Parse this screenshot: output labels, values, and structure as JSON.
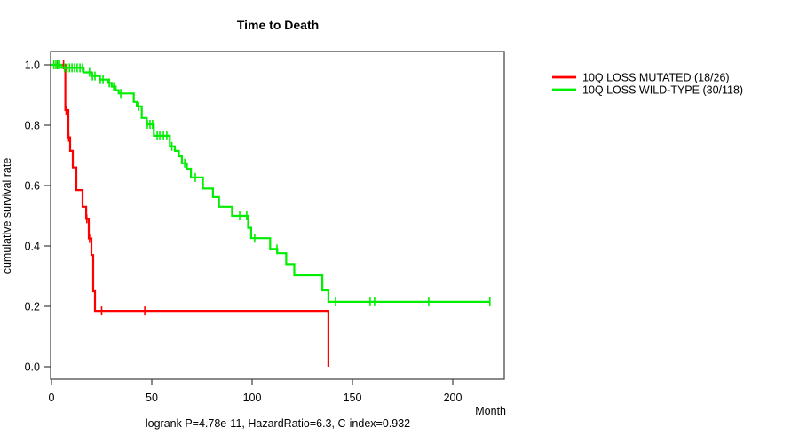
{
  "title": "Time to Death",
  "caption": "logrank P=4.78e-11, HazardRatio=6.3, C-index=0.932",
  "axes": {
    "xlabel": "Month",
    "ylabel": "cumulative survival rate",
    "x_ticks": [
      0,
      50,
      100,
      150,
      200
    ],
    "y_ticks": [
      "0.0",
      "0.2",
      "0.4",
      "0.6",
      "0.8",
      "1.0"
    ],
    "xlim": [
      0,
      220
    ],
    "ylim": [
      0.0,
      1.0
    ]
  },
  "legend": [
    {
      "label": "10Q LOSS MUTATED (18/26)",
      "color": "#ff0000"
    },
    {
      "label": "10Q LOSS WILD-TYPE (30/118)",
      "color": "#00ee00"
    }
  ],
  "chart_data": {
    "type": "line",
    "subtype": "kaplan-meier-step",
    "title": "Time to Death",
    "xlabel": "Month",
    "ylabel": "cumulative survival rate",
    "xlim": [
      0,
      220
    ],
    "ylim": [
      0.0,
      1.0
    ],
    "grid": false,
    "legend_position": "right-outside",
    "series": [
      {
        "name": "10Q LOSS MUTATED (18/26)",
        "color": "#ff0000",
        "events_over_total": "18/26",
        "steps": [
          [
            0,
            1.0
          ],
          [
            6.9,
            0.85
          ],
          [
            8.4,
            0.76
          ],
          [
            9.3,
            0.715
          ],
          [
            10.6,
            0.66
          ],
          [
            12.4,
            0.585
          ],
          [
            15.5,
            0.53
          ],
          [
            17.3,
            0.49
          ],
          [
            18.6,
            0.425
          ],
          [
            19.9,
            0.37
          ],
          [
            20.8,
            0.25
          ],
          [
            21.7,
            0.185
          ],
          [
            138,
            0.0
          ]
        ],
        "end_month": 138,
        "censor_marks": [
          [
            3,
            1.0
          ],
          [
            6,
            1.0
          ],
          [
            7.3,
            0.85
          ],
          [
            8.6,
            0.76
          ],
          [
            17.6,
            0.49
          ],
          [
            19.0,
            0.425
          ],
          [
            25,
            0.185
          ],
          [
            46.5,
            0.185
          ]
        ]
      },
      {
        "name": "10Q LOSS WILD-TYPE (30/118)",
        "color": "#00ee00",
        "events_over_total": "30/118",
        "steps": [
          [
            0,
            1.0
          ],
          [
            5,
            0.99
          ],
          [
            16,
            0.975
          ],
          [
            20,
            0.963
          ],
          [
            24,
            0.951
          ],
          [
            28,
            0.94
          ],
          [
            30,
            0.928
          ],
          [
            32,
            0.916
          ],
          [
            33.5,
            0.905
          ],
          [
            41,
            0.877
          ],
          [
            42.5,
            0.862
          ],
          [
            45,
            0.824
          ],
          [
            47.5,
            0.803
          ],
          [
            51,
            0.765
          ],
          [
            59,
            0.73
          ],
          [
            61.5,
            0.715
          ],
          [
            63.5,
            0.697
          ],
          [
            65,
            0.674
          ],
          [
            67.5,
            0.656
          ],
          [
            69.5,
            0.627
          ],
          [
            75.5,
            0.59
          ],
          [
            80.5,
            0.562
          ],
          [
            83.5,
            0.53
          ],
          [
            90,
            0.5
          ],
          [
            98,
            0.46
          ],
          [
            99.5,
            0.426
          ],
          [
            109,
            0.39
          ],
          [
            112.5,
            0.376
          ],
          [
            117,
            0.34
          ],
          [
            121,
            0.303
          ],
          [
            135,
            0.253
          ],
          [
            138,
            0.215
          ]
        ],
        "end_month": 218.5,
        "censor_marks": [
          [
            1.2,
            1.0
          ],
          [
            2.2,
            1.0
          ],
          [
            3.1,
            1.0
          ],
          [
            4.0,
            1.0
          ],
          [
            6.5,
            0.99
          ],
          [
            7.8,
            0.99
          ],
          [
            9.0,
            0.99
          ],
          [
            10.2,
            0.99
          ],
          [
            11.5,
            0.99
          ],
          [
            12.8,
            0.99
          ],
          [
            14.2,
            0.99
          ],
          [
            15.5,
            0.99
          ],
          [
            19.0,
            0.975
          ],
          [
            20.4,
            0.963
          ],
          [
            21.7,
            0.963
          ],
          [
            24.3,
            0.951
          ],
          [
            25.7,
            0.951
          ],
          [
            28.8,
            0.94
          ],
          [
            31.0,
            0.928
          ],
          [
            34.5,
            0.905
          ],
          [
            43.4,
            0.862
          ],
          [
            47.8,
            0.803
          ],
          [
            49.1,
            0.803
          ],
          [
            50.4,
            0.803
          ],
          [
            52.7,
            0.765
          ],
          [
            54.0,
            0.765
          ],
          [
            55.8,
            0.765
          ],
          [
            57.5,
            0.765
          ],
          [
            60.0,
            0.73
          ],
          [
            66.4,
            0.674
          ],
          [
            71.7,
            0.627
          ],
          [
            93.8,
            0.5
          ],
          [
            97.3,
            0.5
          ],
          [
            101.3,
            0.426
          ],
          [
            112.4,
            0.39
          ],
          [
            141.6,
            0.215
          ],
          [
            158.8,
            0.215
          ],
          [
            161.0,
            0.215
          ],
          [
            188.0,
            0.215
          ],
          [
            218.5,
            0.215
          ]
        ]
      }
    ]
  }
}
